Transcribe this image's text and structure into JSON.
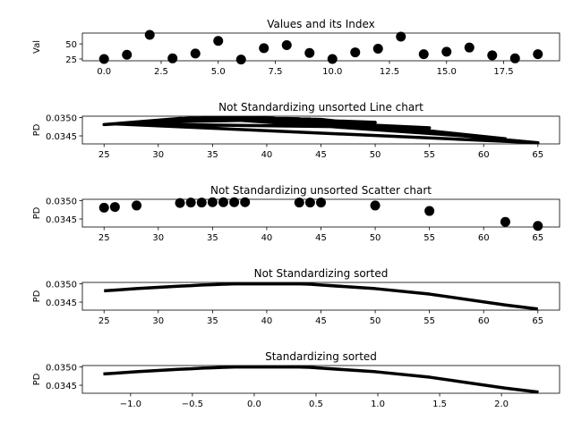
{
  "figure": {
    "background": "#ffffff",
    "mark_color": "#000000"
  },
  "chart_data": [
    {
      "type": "scatter",
      "title": "Values and its Index",
      "xlabel": "",
      "ylabel": "Val",
      "xlim": [
        -0.95,
        19.95
      ],
      "ylim": [
        22,
        68
      ],
      "xticks": [
        0,
        2.5,
        5,
        7.5,
        10,
        12.5,
        15,
        17.5
      ],
      "xtick_labels": [
        "0.0",
        "2.5",
        "5.0",
        "7.5",
        "10.0",
        "12.5",
        "15.0",
        "17.5"
      ],
      "yticks": [
        25,
        50
      ],
      "ytick_labels": [
        "25",
        "50"
      ],
      "x": [
        0,
        1,
        2,
        3,
        4,
        5,
        6,
        7,
        8,
        9,
        10,
        11,
        12,
        13,
        14,
        15,
        16,
        17,
        18,
        19
      ],
      "y": [
        25,
        32,
        65,
        26,
        34,
        55,
        24,
        43,
        48,
        35,
        25,
        36,
        42,
        62,
        33,
        37,
        44,
        31,
        26,
        33
      ]
    },
    {
      "type": "line",
      "title": "Not Standardizing unsorted Line chart",
      "xlabel": "",
      "ylabel": "PD",
      "xlim": [
        23,
        67
      ],
      "ylim": [
        0.03428,
        0.03504
      ],
      "xticks": [
        25,
        30,
        35,
        40,
        45,
        50,
        55,
        60,
        65
      ],
      "xtick_labels": [
        "25",
        "30",
        "35",
        "40",
        "45",
        "50",
        "55",
        "60",
        "65"
      ],
      "yticks": [
        0.0345,
        0.035
      ],
      "ytick_labels": [
        "0.0345",
        "0.0350"
      ],
      "x": [
        25,
        33,
        44,
        28,
        35,
        55,
        26,
        37,
        43,
        32,
        25,
        36,
        45,
        62,
        34,
        38,
        50,
        32,
        26,
        65,
        40,
        33,
        44,
        28,
        35,
        55,
        26,
        37,
        43,
        32,
        25,
        36,
        45,
        62,
        34,
        38,
        50,
        32,
        26,
        65
      ],
      "y": [
        0.03481,
        0.03499,
        0.03496,
        0.03487,
        0.035,
        0.03472,
        0.03483,
        0.035,
        0.03497,
        0.03498,
        0.03481,
        0.035,
        0.03495,
        0.03442,
        0.035,
        0.035,
        0.03487,
        0.03498,
        0.03483,
        0.03431,
        0.035,
        0.03499,
        0.03496,
        0.03487,
        0.035,
        0.03472,
        0.03483,
        0.035,
        0.03497,
        0.03498,
        0.03481,
        0.035,
        0.03495,
        0.03442,
        0.035,
        0.035,
        0.03487,
        0.03498,
        0.03483,
        0.03431
      ]
    },
    {
      "type": "scatter",
      "title": "Not Standardizing unsorted Scatter chart",
      "xlabel": "",
      "ylabel": "PD",
      "xlim": [
        23,
        67
      ],
      "ylim": [
        0.03428,
        0.03504
      ],
      "xticks": [
        25,
        30,
        35,
        40,
        45,
        50,
        55,
        60,
        65
      ],
      "xtick_labels": [
        "25",
        "30",
        "35",
        "40",
        "45",
        "50",
        "55",
        "60",
        "65"
      ],
      "yticks": [
        0.0345,
        0.035
      ],
      "ytick_labels": [
        "0.0345",
        "0.0350"
      ],
      "x": [
        25,
        26,
        28,
        32,
        33,
        34,
        35,
        36,
        37,
        38,
        43,
        44,
        45,
        50,
        55,
        62,
        65
      ],
      "y": [
        0.03481,
        0.03483,
        0.03487,
        0.03494,
        0.03495,
        0.03495,
        0.03496,
        0.03496,
        0.03496,
        0.03496,
        0.03495,
        0.03495,
        0.03495,
        0.03487,
        0.03472,
        0.03442,
        0.03431
      ]
    },
    {
      "type": "line",
      "title": "Not Standardizing sorted",
      "xlabel": "",
      "ylabel": "PD",
      "xlim": [
        23,
        67
      ],
      "ylim": [
        0.03428,
        0.03504
      ],
      "xticks": [
        25,
        30,
        35,
        40,
        45,
        50,
        55,
        60,
        65
      ],
      "xtick_labels": [
        "25",
        "30",
        "35",
        "40",
        "45",
        "50",
        "55",
        "60",
        "65"
      ],
      "yticks": [
        0.0345,
        0.035
      ],
      "ytick_labels": [
        "0.0345",
        "0.0350"
      ],
      "x": [
        25,
        26,
        28,
        32,
        33,
        34,
        35,
        36,
        37,
        38,
        40,
        43,
        44,
        45,
        50,
        55,
        62,
        65
      ],
      "y": [
        0.03481,
        0.03483,
        0.03487,
        0.03494,
        0.03495,
        0.03497,
        0.03498,
        0.03499,
        0.035,
        0.035,
        0.035,
        0.035,
        0.03499,
        0.03497,
        0.03487,
        0.03472,
        0.03442,
        0.03431
      ]
    },
    {
      "type": "line",
      "title": "Standardizing sorted",
      "xlabel": "",
      "ylabel": "PD",
      "xlim": [
        -1.39,
        2.47
      ],
      "ylim": [
        0.03428,
        0.03504
      ],
      "xticks": [
        -1.0,
        -0.5,
        0.0,
        0.5,
        1.0,
        1.5,
        2.0
      ],
      "xtick_labels": [
        "−1.0",
        "−0.5",
        "0.0",
        "0.5",
        "1.0",
        "1.5",
        "2.0"
      ],
      "yticks": [
        0.0345,
        0.035
      ],
      "ytick_labels": [
        "0.0345",
        "0.0350"
      ],
      "x": [
        -1.22,
        -1.13,
        -0.95,
        -0.6,
        -0.51,
        -0.42,
        -0.33,
        -0.25,
        -0.16,
        -0.07,
        0.1,
        0.36,
        0.45,
        0.54,
        0.98,
        1.42,
        2.03,
        2.3
      ],
      "y": [
        0.03481,
        0.03483,
        0.03487,
        0.03494,
        0.03495,
        0.03497,
        0.03498,
        0.03499,
        0.035,
        0.035,
        0.035,
        0.035,
        0.03499,
        0.03497,
        0.03487,
        0.03472,
        0.03442,
        0.03431
      ]
    }
  ]
}
